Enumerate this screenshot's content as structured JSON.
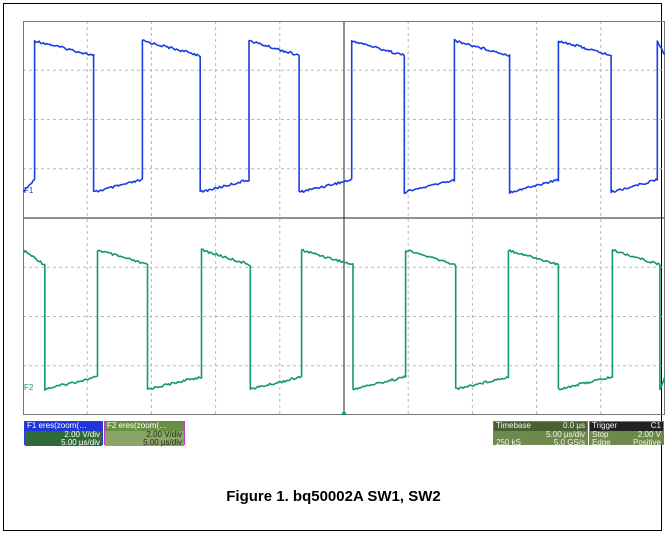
{
  "chart_data": {
    "type": "line",
    "title": "Figure 1. bq50002A SW1, SW2",
    "timebase_us_per_div": 5.0,
    "x_divisions": 10,
    "y_divisions": 8,
    "x_range_us": [
      0,
      50
    ],
    "series": [
      {
        "name": "F1",
        "color": "#1a3ee0",
        "volts_per_div": 2.0,
        "low_v": 0.0,
        "high_v": 6.3,
        "rise_times_us": [
          0.9,
          9.3,
          17.6,
          25.6,
          33.6,
          41.7,
          49.4
        ],
        "fall_times_us": [
          5.5,
          13.8,
          21.5,
          29.7,
          37.9,
          45.8
        ]
      },
      {
        "name": "F2",
        "color": "#12996e",
        "volts_per_div": 2.0,
        "low_v": 0.0,
        "high_v": 5.8,
        "rise_times_us": [
          5.8,
          13.9,
          21.7,
          29.8,
          37.8,
          45.9
        ],
        "fall_times_us": [
          1.7,
          9.7,
          17.7,
          25.7,
          33.7,
          41.7,
          49.6
        ]
      }
    ]
  },
  "f1_box": {
    "header": "F1 eres(zoom(…",
    "vdiv": "2.00 V/div",
    "tdiv": "5.00 µs/div"
  },
  "f2_box": {
    "header": "F2 eres(zoom(…",
    "vdiv": "2.00 V/div",
    "tdiv": "5.00 µs/div"
  },
  "timebase": {
    "label": "Timebase",
    "delay": "0.0 µs",
    "tdiv": "5.00 µs/div",
    "samples": "250 kS",
    "rate": "5.0 GS/s"
  },
  "trigger": {
    "label": "Trigger",
    "channel": "C1",
    "mode": "Stop",
    "level": "2.00 V",
    "type": "Edge",
    "slope": "Positive"
  },
  "caption": "Figure 1. bq50002A SW1, SW2"
}
